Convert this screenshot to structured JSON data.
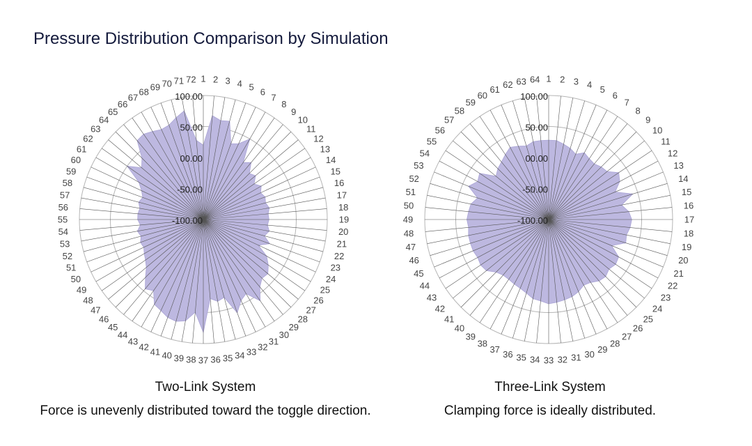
{
  "title": "Pressure Distribution Comparison by Simulation",
  "colors": {
    "fill": "#bdb8e0",
    "fill_stroke": "#aaa4d6",
    "grid": "#b5b5b5",
    "spoke": "#555555"
  },
  "chart_data": [
    {
      "type": "radar",
      "name": "Two-Link System",
      "caption": "Force is unevenly distributed toward the toggle direction.",
      "rlim": [
        -100,
        100
      ],
      "tick_labels": [
        "-100.00",
        "-50.00",
        "00.00",
        "50.00",
        "100.00"
      ],
      "tick_values": [
        -100,
        -50,
        0,
        50,
        100
      ],
      "categories": [
        "1",
        "2",
        "3",
        "4",
        "5",
        "6",
        "7",
        "8",
        "9",
        "10",
        "11",
        "12",
        "13",
        "14",
        "15",
        "16",
        "17",
        "18",
        "19",
        "20",
        "21",
        "22",
        "23",
        "24",
        "25",
        "26",
        "27",
        "28",
        "29",
        "30",
        "31",
        "32",
        "33",
        "34",
        "35",
        "36",
        "37",
        "38",
        "39",
        "40",
        "41",
        "42",
        "43",
        "44",
        "45",
        "46",
        "47",
        "48",
        "49",
        "50",
        "51",
        "52",
        "53",
        "54",
        "55",
        "56",
        "57",
        "58",
        "59",
        "60",
        "61",
        "62",
        "63",
        "64",
        "65",
        "66",
        "67",
        "68",
        "69",
        "70",
        "71",
        "72"
      ],
      "values": [
        20,
        68,
        62,
        64,
        30,
        35,
        50,
        12,
        20,
        5,
        10,
        0,
        8,
        2,
        6,
        4,
        8,
        5,
        6,
        4,
        8,
        2,
        14,
        -2,
        18,
        28,
        36,
        34,
        42,
        60,
        38,
        44,
        60,
        30,
        34,
        28,
        82,
        50,
        66,
        70,
        68,
        62,
        58,
        40,
        46,
        32,
        20,
        14,
        10,
        6,
        8,
        4,
        8,
        2,
        6,
        6,
        4,
        8,
        4,
        10,
        20,
        50,
        30,
        40,
        66,
        68,
        64,
        60,
        62,
        70,
        78,
        28
      ]
    },
    {
      "type": "radar",
      "name": "Three-Link System",
      "caption": "Clamping force is ideally distributed.",
      "rlim": [
        -100,
        100
      ],
      "tick_labels": [
        "-100.00",
        "-50.00",
        "00.00",
        "50.00",
        "100.00"
      ],
      "tick_values": [
        -100,
        -50,
        0,
        50,
        100
      ],
      "categories": [
        "1",
        "2",
        "3",
        "4",
        "5",
        "6",
        "7",
        "8",
        "9",
        "10",
        "11",
        "12",
        "13",
        "14",
        "15",
        "16",
        "17",
        "18",
        "19",
        "20",
        "21",
        "22",
        "23",
        "24",
        "25",
        "26",
        "27",
        "28",
        "29",
        "30",
        "31",
        "32",
        "33",
        "34",
        "35",
        "36",
        "37",
        "38",
        "39",
        "40",
        "41",
        "42",
        "43",
        "44",
        "45",
        "46",
        "47",
        "48",
        "49",
        "50",
        "51",
        "52",
        "53",
        "54",
        "55",
        "56",
        "57",
        "58",
        "59",
        "60",
        "61",
        "62",
        "63",
        "64"
      ],
      "values": [
        28,
        28,
        24,
        20,
        14,
        22,
        18,
        16,
        20,
        22,
        36,
        30,
        16,
        42,
        20,
        30,
        34,
        32,
        28,
        30,
        10,
        28,
        30,
        26,
        30,
        28,
        22,
        20,
        26,
        30,
        32,
        34,
        36,
        32,
        30,
        24,
        20,
        18,
        16,
        16,
        20,
        30,
        32,
        30,
        32,
        32,
        32,
        30,
        32,
        30,
        28,
        20,
        40,
        30,
        34,
        10,
        16,
        20,
        26,
        32,
        28,
        24,
        28,
        28
      ]
    }
  ]
}
